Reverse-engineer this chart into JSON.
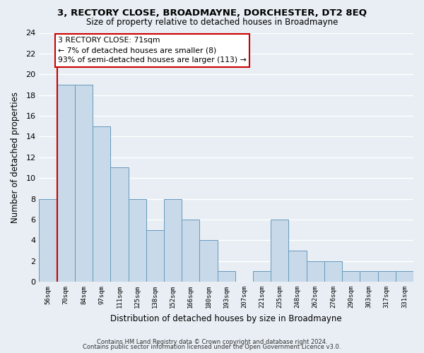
{
  "title": "3, RECTORY CLOSE, BROADMAYNE, DORCHESTER, DT2 8EQ",
  "subtitle": "Size of property relative to detached houses in Broadmayne",
  "xlabel": "Distribution of detached houses by size in Broadmayne",
  "ylabel": "Number of detached properties",
  "bin_labels": [
    "56sqm",
    "70sqm",
    "84sqm",
    "97sqm",
    "111sqm",
    "125sqm",
    "138sqm",
    "152sqm",
    "166sqm",
    "180sqm",
    "193sqm",
    "207sqm",
    "221sqm",
    "235sqm",
    "248sqm",
    "262sqm",
    "276sqm",
    "290sqm",
    "303sqm",
    "317sqm",
    "331sqm"
  ],
  "bar_heights": [
    8,
    19,
    19,
    15,
    11,
    8,
    5,
    8,
    6,
    4,
    1,
    0,
    1,
    6,
    3,
    2,
    2,
    1,
    1,
    1,
    1
  ],
  "bar_color": "#c8d9ea",
  "bar_edge_color": "#6699bb",
  "highlight_line_color": "#cc0000",
  "annotation_title": "3 RECTORY CLOSE: 71sqm",
  "annotation_line1": "← 7% of detached houses are smaller (8)",
  "annotation_line2": "93% of semi-detached houses are larger (113) →",
  "annotation_box_color": "#ffffff",
  "annotation_box_edge": "#cc0000",
  "ylim": [
    0,
    24
  ],
  "yticks": [
    0,
    2,
    4,
    6,
    8,
    10,
    12,
    14,
    16,
    18,
    20,
    22,
    24
  ],
  "footer1": "Contains HM Land Registry data © Crown copyright and database right 2024.",
  "footer2": "Contains public sector information licensed under the Open Government Licence v3.0.",
  "background_color": "#e8eef4",
  "grid_color": "#ffffff",
  "plot_bg_color": "#e8eef4"
}
